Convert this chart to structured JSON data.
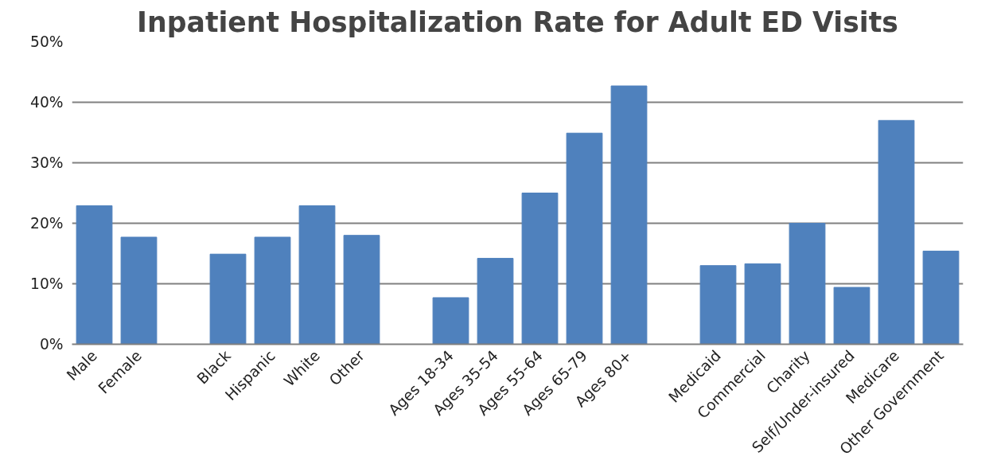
{
  "chart_data": {
    "type": "bar",
    "title": "Inpatient Hospitalization Rate for Adult ED Visits",
    "categories": [
      "Male",
      "Female",
      null,
      "Black",
      "Hispanic",
      "White",
      "Other",
      null,
      "Ages 18-34",
      "Ages 35-54",
      "Ages 55-64",
      "Ages 65-79",
      "Ages 80+",
      null,
      "Medicaid",
      "Commercial",
      "Charity",
      "Self/Under-insured",
      "Medicare",
      "Other Government"
    ],
    "values": [
      22.9,
      17.7,
      null,
      14.9,
      17.7,
      22.9,
      18.0,
      null,
      7.7,
      14.2,
      25.0,
      34.9,
      42.7,
      null,
      13.0,
      13.3,
      20.0,
      9.4,
      37.0,
      15.4
    ],
    "color": "#4f81bd",
    "ylim": [
      0,
      50
    ],
    "yticks": [
      {
        "value": 0,
        "label": "0%"
      },
      {
        "value": 10,
        "label": "10%"
      },
      {
        "value": 20,
        "label": "20%"
      },
      {
        "value": 30,
        "label": "30%"
      },
      {
        "value": 40,
        "label": "40%"
      },
      {
        "value": 50,
        "label": "50%"
      }
    ],
    "grid": "y"
  }
}
